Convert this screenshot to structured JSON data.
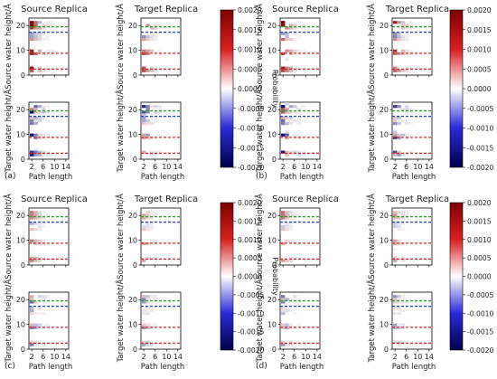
{
  "chart_data": {
    "type": "heatmap",
    "column_titles": [
      "Source Replica",
      "Target Replica"
    ],
    "row_ylabels": [
      "Source water height/Å",
      "Target water height/Å"
    ],
    "xlabel": "Path length",
    "x_ticks": [
      2,
      6,
      10,
      14
    ],
    "y_ticks": [
      0,
      10,
      20
    ],
    "xlim": [
      1,
      15
    ],
    "ylim": [
      0,
      23
    ],
    "reference_lines": [
      {
        "y": 19.5,
        "color": "#2ca02c"
      },
      {
        "y": 17.3,
        "color": "#1f3fc8"
      },
      {
        "y": 8.8,
        "color": "#d62728"
      },
      {
        "y": 2.4,
        "color": "#d62728"
      }
    ],
    "colorbar": {
      "label": "Probability",
      "ticks": [
        "0.0020",
        "0.0015",
        "0.0010",
        "0.0005",
        "0.0000",
        "-0.0005",
        "-0.0010",
        "-0.0015",
        "-0.0020"
      ],
      "vmin": -0.002,
      "vmax": 0.002,
      "colormap": "seismic"
    },
    "panel_labels": [
      "(a)",
      "(b)",
      "(c)",
      "(d)"
    ]
  }
}
